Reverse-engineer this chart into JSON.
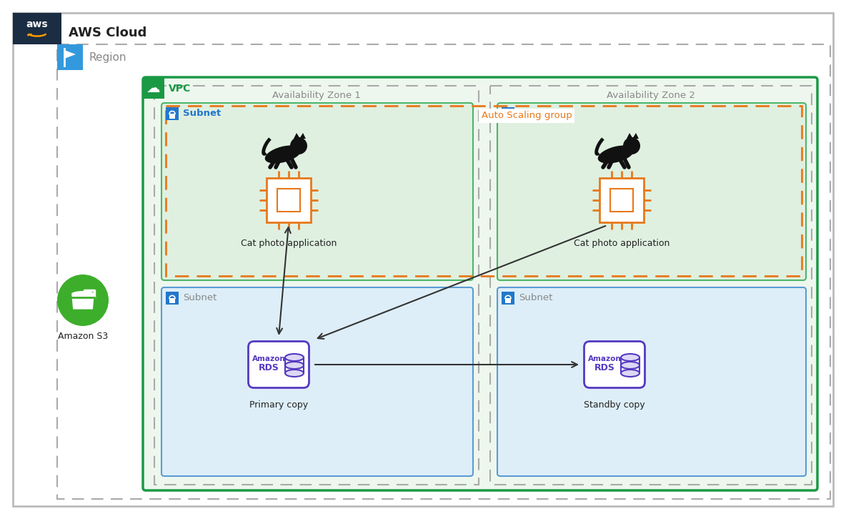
{
  "title": "AWS Cloud",
  "region_label": "Region",
  "vpc_label": "VPC",
  "az1_label": "Availability Zone 1",
  "az2_label": "Availability Zone 2",
  "subnet_label": "Subnet",
  "auto_scaling_label": "Auto Scaling group",
  "cat_app_label": "Cat photo application",
  "primary_label": "Primary copy",
  "standby_label": "Standby copy",
  "s3_label": "Amazon S3",
  "aws_header_bg": "#1a2d42",
  "region_border": "#aaaaaa",
  "vpc_border": "#1a9944",
  "vpc_bg": "#edf7ee",
  "az_border": "#aaaaaa",
  "subnet_green_bg": "#dff0e0",
  "subnet_green_border": "#4db56a",
  "subnet_blue_bg": "#ddeef8",
  "subnet_blue_border": "#5b9bd5",
  "auto_scaling_border": "#e8781a",
  "auto_scaling_label_color": "#e8781a",
  "rds_color": "#5539c0",
  "rds_bg": "#ddd8f5",
  "ec2_color": "#e8781a",
  "arrow_color": "#333333",
  "s3_green": "#3dae2b",
  "lock_blue": "#2277cc",
  "text_dark": "#222222",
  "text_gray": "#888888",
  "outer_border": "#cccccc",
  "vpc_solid_border": "#1a9944"
}
